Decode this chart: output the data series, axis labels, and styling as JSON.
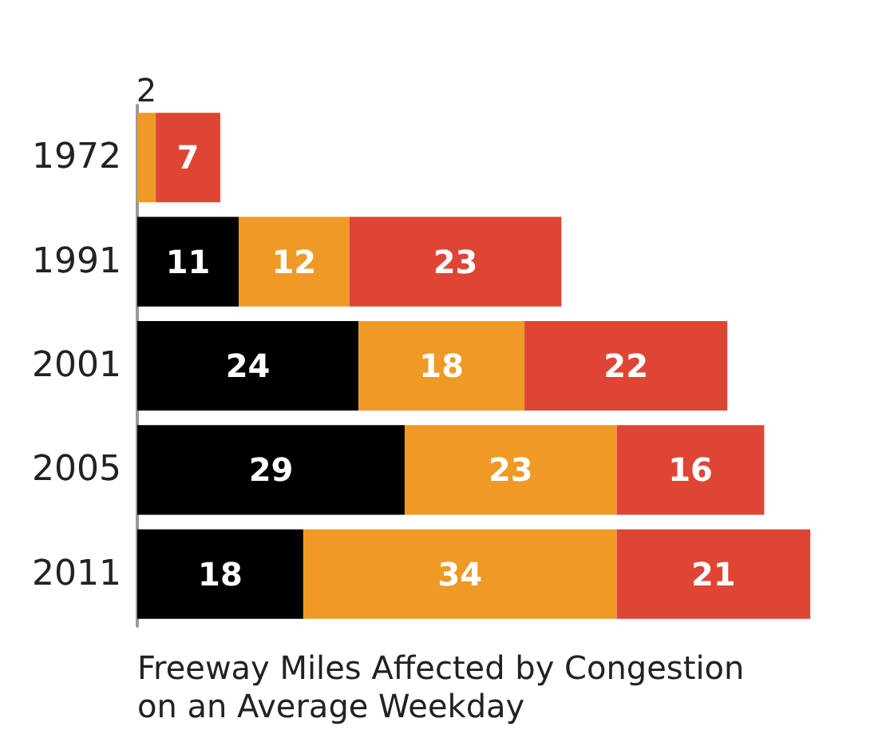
{
  "chart_data": {
    "type": "bar",
    "orientation": "horizontal",
    "stacked": true,
    "xlabel": "Freeway Miles Affected by Congestion\non an Average Weekday",
    "categories": [
      "1972",
      "1991",
      "2001",
      "2005",
      "2011"
    ],
    "data_labels": true,
    "series": [
      {
        "color": "#000000",
        "values": [
          null,
          11,
          24,
          29,
          18
        ]
      },
      {
        "color": "#ee9a25",
        "values": [
          2,
          12,
          18,
          23,
          34
        ]
      },
      {
        "color": "#df4535",
        "values": [
          7,
          23,
          22,
          16,
          21
        ]
      }
    ]
  }
}
